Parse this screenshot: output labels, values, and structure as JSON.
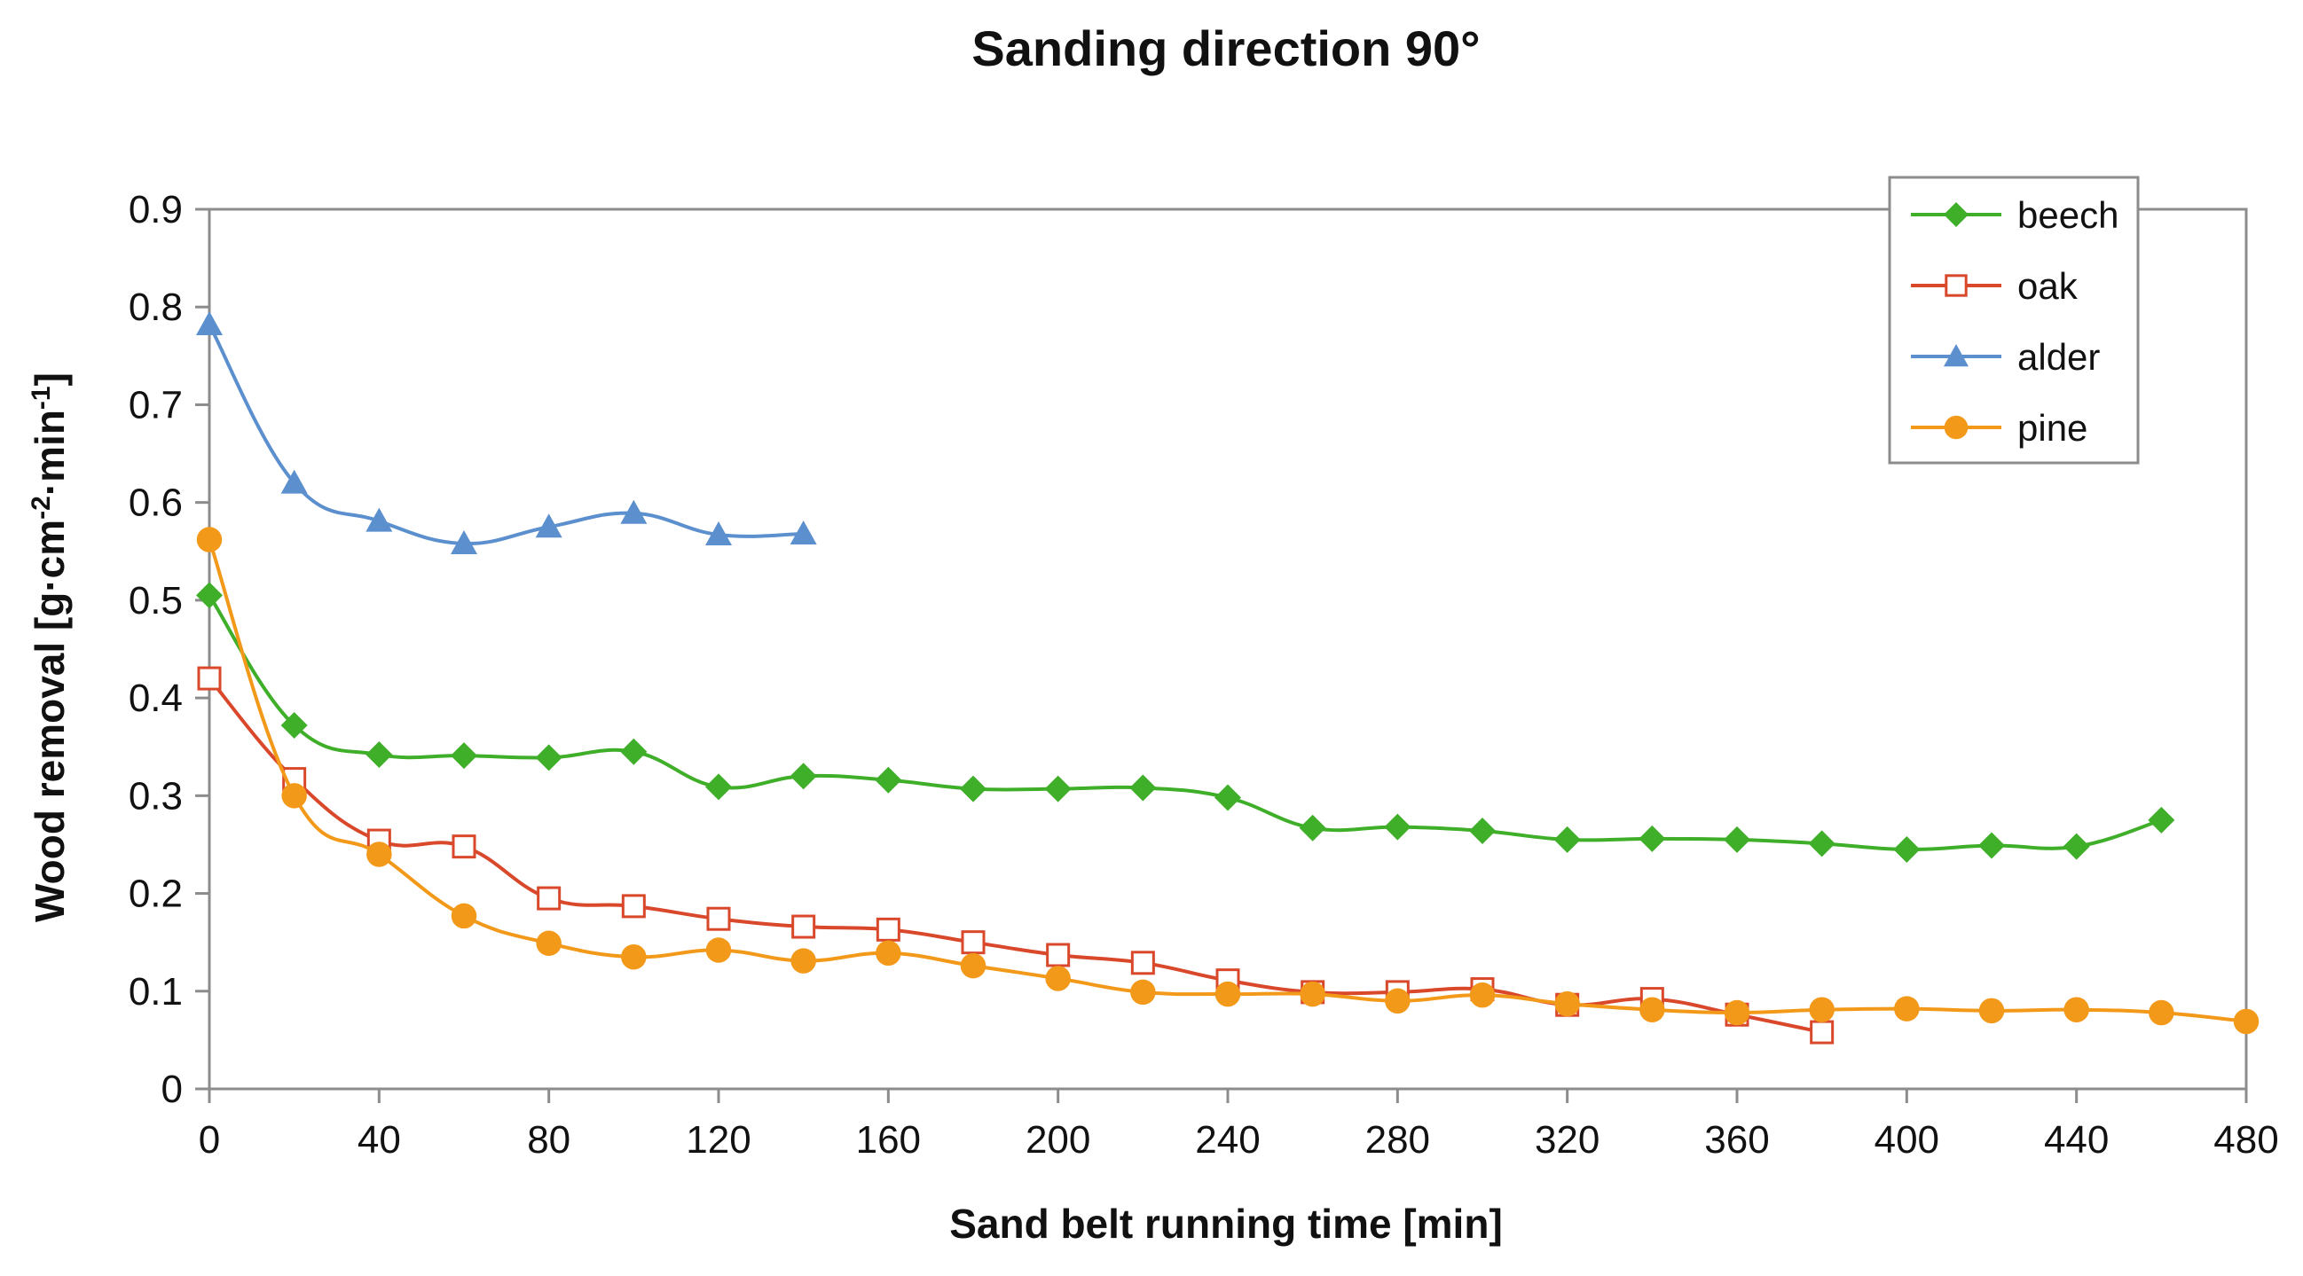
{
  "chart_data": {
    "type": "line",
    "title": "Sanding direction 90°",
    "xlabel": "Sand belt running time [min]",
    "ylabel_parts": [
      "Wood removal [g·cm",
      "-2",
      "·min",
      "-1",
      "]"
    ],
    "xlim": [
      0,
      480
    ],
    "ylim": [
      0,
      0.9
    ],
    "xticks": [
      0,
      40,
      80,
      120,
      160,
      200,
      240,
      280,
      320,
      360,
      400,
      440,
      480
    ],
    "yticks": [
      0,
      0.1,
      0.2,
      0.3,
      0.4,
      0.5,
      0.6,
      0.7,
      0.8,
      0.9
    ],
    "xtick_labels": [
      "0",
      "40",
      "80",
      "120",
      "160",
      "200",
      "240",
      "280",
      "320",
      "360",
      "400",
      "440",
      "480"
    ],
    "ytick_labels": [
      "0",
      "0.1",
      "0.2",
      "0.3",
      "0.4",
      "0.5",
      "0.6",
      "0.7",
      "0.8",
      "0.9"
    ],
    "grid": false,
    "legend_position": "top-right",
    "series": [
      {
        "name": "beech",
        "color": "#3fae29",
        "marker": "diamond",
        "x": [
          0,
          20,
          40,
          60,
          80,
          100,
          120,
          140,
          160,
          180,
          200,
          220,
          240,
          260,
          280,
          300,
          320,
          340,
          360,
          380,
          400,
          420,
          440,
          460
        ],
        "y": [
          0.505,
          0.372,
          0.342,
          0.341,
          0.339,
          0.345,
          0.309,
          0.32,
          0.316,
          0.307,
          0.307,
          0.308,
          0.298,
          0.267,
          0.268,
          0.264,
          0.255,
          0.256,
          0.255,
          0.251,
          0.245,
          0.249,
          0.248,
          0.275
        ]
      },
      {
        "name": "oak",
        "color": "#d9482b",
        "marker": "square-open",
        "x": [
          0,
          20,
          40,
          60,
          80,
          100,
          120,
          140,
          160,
          180,
          200,
          220,
          240,
          260,
          280,
          300,
          320,
          340,
          360,
          380
        ],
        "y": [
          0.42,
          0.317,
          0.254,
          0.248,
          0.195,
          0.187,
          0.174,
          0.166,
          0.163,
          0.15,
          0.137,
          0.129,
          0.111,
          0.099,
          0.099,
          0.102,
          0.086,
          0.092,
          0.076,
          0.058
        ]
      },
      {
        "name": "alder",
        "color": "#5b8fce",
        "marker": "triangle",
        "x": [
          0,
          20,
          40,
          60,
          80,
          100,
          120,
          140
        ],
        "y": [
          0.782,
          0.62,
          0.581,
          0.558,
          0.575,
          0.589,
          0.567,
          0.568
        ]
      },
      {
        "name": "pine",
        "color": "#f3991a",
        "marker": "circle",
        "x": [
          0,
          20,
          40,
          60,
          80,
          100,
          120,
          140,
          160,
          180,
          200,
          220,
          240,
          260,
          280,
          300,
          320,
          340,
          360,
          380,
          400,
          420,
          440,
          460,
          480
        ],
        "y": [
          0.562,
          0.3,
          0.24,
          0.177,
          0.149,
          0.135,
          0.142,
          0.131,
          0.139,
          0.126,
          0.113,
          0.099,
          0.097,
          0.097,
          0.09,
          0.096,
          0.087,
          0.081,
          0.078,
          0.081,
          0.082,
          0.08,
          0.081,
          0.078,
          0.069
        ]
      }
    ]
  }
}
